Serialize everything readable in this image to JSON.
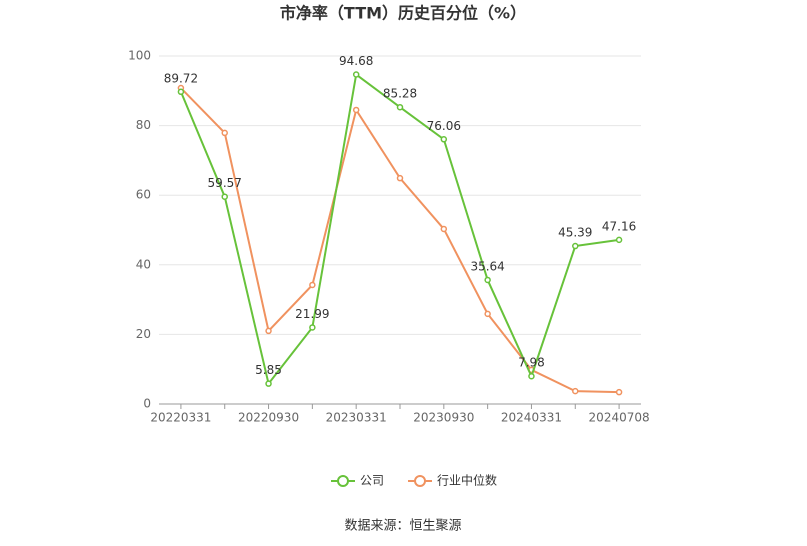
{
  "chart_data": {
    "type": "line",
    "title": "市净率（TTM）历史百分位（%）",
    "categories": [
      "20220331",
      null,
      "20220930",
      null,
      "20230331",
      null,
      "20230930",
      null,
      "20240331",
      null,
      "20240708"
    ],
    "series": [
      {
        "name": "公司",
        "color": "#67c23a",
        "values": [
          89.72,
          59.57,
          5.85,
          21.99,
          94.68,
          85.28,
          76.06,
          35.64,
          7.98,
          45.39,
          47.16
        ],
        "show_labels": true
      },
      {
        "name": "行业中位数",
        "color": "#f0925f",
        "values": [
          90.8,
          77.9,
          21.0,
          34.2,
          84.5,
          64.9,
          50.3,
          25.9,
          9.8,
          3.7,
          3.4
        ],
        "show_labels": false
      }
    ],
    "ylim": [
      0,
      100
    ],
    "yticks": [
      0,
      20,
      40,
      60,
      80,
      100
    ],
    "grid": true,
    "source": "数据来源：恒生聚源"
  }
}
